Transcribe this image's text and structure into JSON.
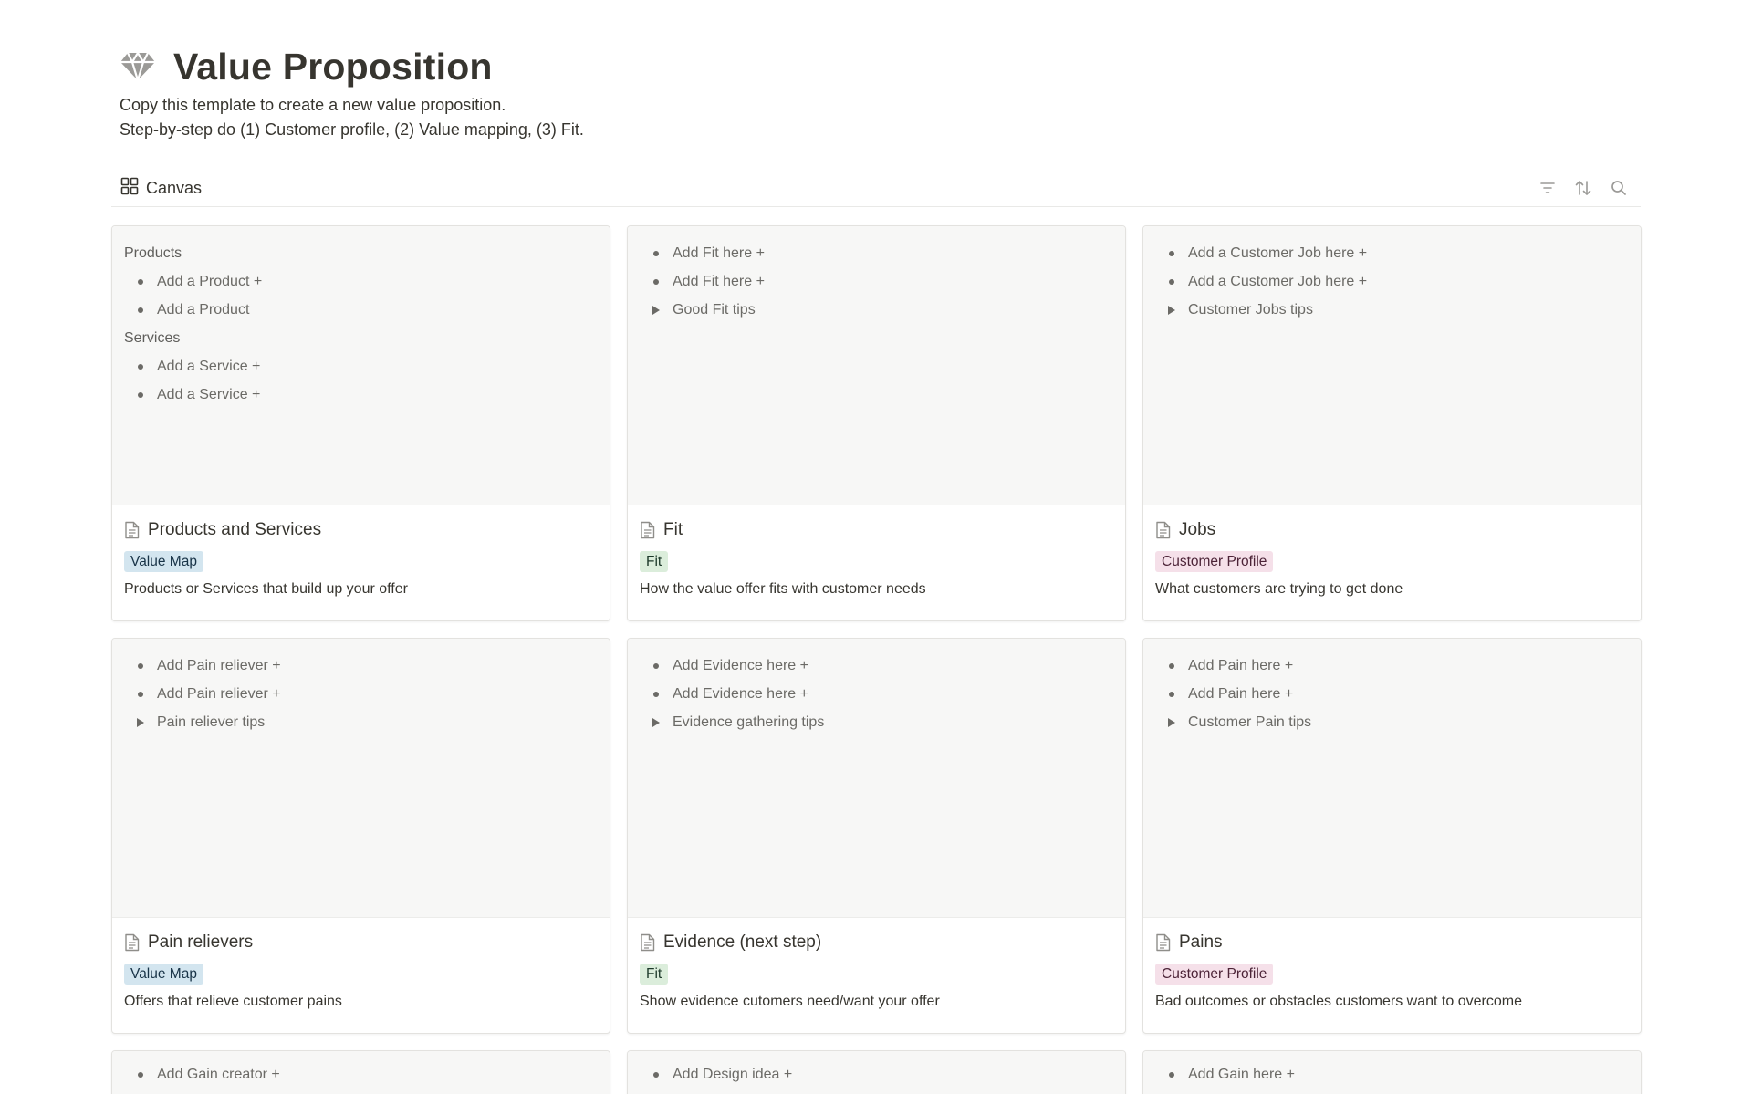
{
  "page": {
    "title": "Value Proposition",
    "icon": "gem-icon",
    "description_line1": "Copy this template to create a new value proposition.",
    "description_line2": "Step-by-step do (1) Customer profile, (2) Value mapping, (3) Fit."
  },
  "view": {
    "tab_label": "Canvas",
    "tab_icon": "gallery-grid-icon",
    "actions": [
      "filter-icon",
      "sort-icon",
      "search-icon"
    ]
  },
  "colors": {
    "tag_value_map_bg": "#d3e5ef",
    "tag_fit_bg": "#dbeddb",
    "tag_customer_profile_bg": "#f5e0e9",
    "preview_bg": "#f7f7f6",
    "text": "#37352f"
  },
  "cards": [
    {
      "title": "Products and Services",
      "tag": "Value Map",
      "description": "Products or Services that build up your offer",
      "preview": [
        {
          "kind": "heading",
          "text": "Products"
        },
        {
          "kind": "bullet",
          "text": "Add a Product +"
        },
        {
          "kind": "bullet",
          "text": "Add a Product"
        },
        {
          "kind": "heading",
          "text": "Services"
        },
        {
          "kind": "bullet",
          "text": "Add a Service +"
        },
        {
          "kind": "bullet",
          "text": "Add a Service +"
        }
      ]
    },
    {
      "title": "Fit",
      "tag": "Fit",
      "description": "How the value offer fits with customer needs",
      "preview": [
        {
          "kind": "bullet",
          "text": "Add Fit here +"
        },
        {
          "kind": "bullet",
          "text": "Add Fit here +"
        },
        {
          "kind": "toggle",
          "text": "Good Fit tips"
        }
      ]
    },
    {
      "title": "Jobs",
      "tag": "Customer Profile",
      "description": "What customers are trying to get done",
      "preview": [
        {
          "kind": "bullet",
          "text": "Add a Customer Job here +"
        },
        {
          "kind": "bullet",
          "text": "Add a Customer Job here +"
        },
        {
          "kind": "toggle",
          "text": "Customer Jobs tips"
        }
      ]
    },
    {
      "title": "Pain relievers",
      "tag": "Value Map",
      "description": "Offers that relieve customer pains",
      "preview": [
        {
          "kind": "bullet",
          "text": "Add Pain reliever +"
        },
        {
          "kind": "bullet",
          "text": "Add Pain reliever +"
        },
        {
          "kind": "toggle",
          "text": "Pain reliever tips"
        }
      ]
    },
    {
      "title": "Evidence (next step)",
      "tag": "Fit",
      "description": "Show evidence cutomers need/want your offer",
      "preview": [
        {
          "kind": "bullet",
          "text": "Add Evidence here +"
        },
        {
          "kind": "bullet",
          "text": "Add Evidence here +"
        },
        {
          "kind": "toggle",
          "text": "Evidence gathering tips"
        }
      ]
    },
    {
      "title": "Pains",
      "tag": "Customer Profile",
      "description": "Bad outcomes or obstacles customers want to overcome",
      "preview": [
        {
          "kind": "bullet",
          "text": "Add Pain here +"
        },
        {
          "kind": "bullet",
          "text": "Add Pain here +"
        },
        {
          "kind": "toggle",
          "text": "Customer Pain tips"
        }
      ]
    },
    {
      "preview": [
        {
          "kind": "bullet",
          "text": "Add Gain creator +"
        }
      ]
    },
    {
      "preview": [
        {
          "kind": "bullet",
          "text": "Add Design idea +"
        }
      ]
    },
    {
      "preview": [
        {
          "kind": "bullet",
          "text": "Add Gain here +"
        }
      ]
    }
  ]
}
